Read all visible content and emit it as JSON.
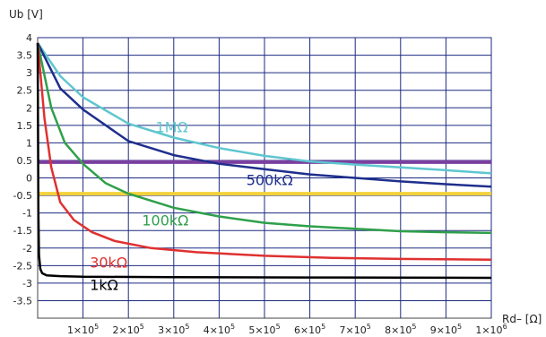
{
  "chart_data": {
    "type": "line",
    "ylabel": "Ub [V]",
    "xlabel": "Rd– [Ω]",
    "xlim": [
      0,
      1000000
    ],
    "ylim": [
      -4,
      4
    ],
    "grid": true,
    "y_ticks": [
      "4",
      "3.5",
      "3",
      "2.5",
      "2",
      "1.5",
      "1",
      "0.5",
      "0",
      "-0.5",
      "-1",
      "-1.5",
      "-2",
      "-2.5",
      "-3",
      "-3.5"
    ],
    "y_tick_values": [
      4,
      3.5,
      3,
      2.5,
      2,
      1.5,
      1,
      0.5,
      0,
      -0.5,
      -1,
      -1.5,
      -2,
      -2.5,
      -3,
      -3.5
    ],
    "x_ticks": [
      {
        "value": 100000,
        "mant": "1",
        "exp": "5"
      },
      {
        "value": 200000,
        "mant": "2",
        "exp": "5"
      },
      {
        "value": 300000,
        "mant": "3",
        "exp": "5"
      },
      {
        "value": 400000,
        "mant": "4",
        "exp": "5"
      },
      {
        "value": 500000,
        "mant": "5",
        "exp": "5"
      },
      {
        "value": 600000,
        "mant": "6",
        "exp": "5"
      },
      {
        "value": 700000,
        "mant": "7",
        "exp": "5"
      },
      {
        "value": 800000,
        "mant": "8",
        "exp": "5"
      },
      {
        "value": 900000,
        "mant": "9",
        "exp": "5"
      },
      {
        "value": 1000000,
        "mant": "1",
        "exp": "6"
      }
    ],
    "hlines": [
      {
        "y": 0.45,
        "color": "#7b3fa0"
      },
      {
        "y": -0.45,
        "color": "#f2d23a"
      }
    ],
    "series": [
      {
        "name": "1MΩ",
        "color": "#5fc6cf",
        "label_pos": [
          260000,
          1.3
        ],
        "x": [
          0,
          50000,
          100000,
          200000,
          300000,
          400000,
          500000,
          600000,
          700000,
          800000,
          900000,
          1000000
        ],
        "y": [
          3.85,
          2.9,
          2.3,
          1.55,
          1.15,
          0.85,
          0.63,
          0.47,
          0.38,
          0.3,
          0.22,
          0.13
        ]
      },
      {
        "name": "500kΩ",
        "color": "#1f2f8c",
        "label_pos": [
          460000,
          -0.2
        ],
        "x": [
          0,
          50000,
          100000,
          200000,
          300000,
          400000,
          500000,
          600000,
          700000,
          800000,
          900000,
          1000000
        ],
        "y": [
          3.85,
          2.55,
          1.95,
          1.05,
          0.65,
          0.4,
          0.25,
          0.1,
          0.0,
          -0.1,
          -0.18,
          -0.25
        ]
      },
      {
        "name": "100kΩ",
        "color": "#2fa04a",
        "label_pos": [
          230000,
          -1.35
        ],
        "x": [
          0,
          30000,
          60000,
          100000,
          150000,
          200000,
          300000,
          400000,
          500000,
          600000,
          700000,
          800000,
          900000,
          1000000
        ],
        "y": [
          3.85,
          2.0,
          1.0,
          0.4,
          -0.15,
          -0.45,
          -0.85,
          -1.1,
          -1.28,
          -1.38,
          -1.45,
          -1.52,
          -1.55,
          -1.57
        ]
      },
      {
        "name": "30kΩ",
        "color": "#e03030",
        "label_pos": [
          115000,
          -2.55
        ],
        "x": [
          0,
          15000,
          30000,
          50000,
          80000,
          120000,
          170000,
          250000,
          350000,
          500000,
          650000,
          800000,
          1000000
        ],
        "y": [
          3.85,
          1.7,
          0.3,
          -0.7,
          -1.2,
          -1.55,
          -1.8,
          -2.0,
          -2.12,
          -2.22,
          -2.28,
          -2.31,
          -2.33
        ]
      },
      {
        "name": "1kΩ",
        "color": "#000000",
        "label_pos": [
          115000,
          -3.2
        ],
        "x": [
          0,
          1500,
          3000,
          6000,
          10000,
          20000,
          50000,
          100000,
          300000,
          600000,
          1000000
        ],
        "y": [
          3.85,
          -1.0,
          -2.2,
          -2.6,
          -2.72,
          -2.78,
          -2.8,
          -2.82,
          -2.83,
          -2.84,
          -2.85
        ]
      }
    ]
  }
}
